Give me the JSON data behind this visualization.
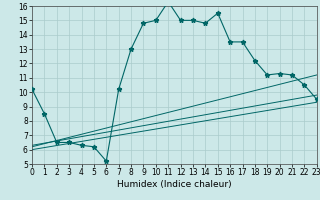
{
  "title": "",
  "xlabel": "Humidex (Indice chaleur)",
  "bg_color": "#cce8e8",
  "grid_color": "#aacccc",
  "line_color": "#006666",
  "x_min": 0,
  "x_max": 23,
  "y_min": 5,
  "y_max": 16,
  "main_x": [
    0,
    1,
    2,
    3,
    4,
    5,
    6,
    7,
    8,
    9,
    10,
    11,
    12,
    13,
    14,
    15,
    16,
    17,
    18,
    19,
    20,
    21,
    22,
    23
  ],
  "main_y": [
    10.2,
    8.5,
    6.5,
    6.5,
    6.3,
    6.2,
    5.2,
    10.2,
    13.0,
    14.8,
    15.0,
    16.3,
    15.0,
    15.0,
    14.8,
    15.5,
    13.5,
    13.5,
    12.2,
    11.2,
    11.3,
    11.2,
    10.5,
    9.5
  ],
  "line2_x": [
    0,
    23
  ],
  "line2_y": [
    6.2,
    11.2
  ],
  "line3_x": [
    0,
    23
  ],
  "line3_y": [
    6.0,
    9.3
  ],
  "line4_x": [
    0,
    23
  ],
  "line4_y": [
    6.3,
    9.8
  ],
  "x_ticks": [
    0,
    1,
    2,
    3,
    4,
    5,
    6,
    7,
    8,
    9,
    10,
    11,
    12,
    13,
    14,
    15,
    16,
    17,
    18,
    19,
    20,
    21,
    22,
    23
  ],
  "y_ticks": [
    5,
    6,
    7,
    8,
    9,
    10,
    11,
    12,
    13,
    14,
    15,
    16
  ],
  "tick_fontsize": 5.5,
  "xlabel_fontsize": 6.5
}
